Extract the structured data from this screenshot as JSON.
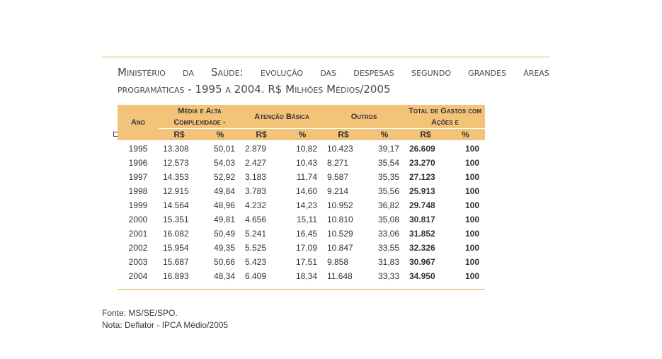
{
  "title": {
    "line1_words": [
      "Ministério",
      "da",
      "Saúde:",
      "evolução",
      "das",
      "despesas",
      "segundo",
      "grandes",
      "áreas"
    ],
    "line2": "programáticas - 1995 a 2004. R$ Milhões Médios/2005"
  },
  "table": {
    "headers": {
      "ano": "Ano",
      "media_alta": "Média e Alta Complexidade -",
      "atencao": "Atenção Básica",
      "outros": "Outros",
      "total": "Total de Gastos com Ações e"
    },
    "subheaders": [
      "R$",
      "%",
      "R$",
      "%",
      "R$",
      "%",
      "R$",
      "%"
    ],
    "rows": [
      [
        "1995",
        "13.308",
        "50,01",
        "2.879",
        "10,82",
        "10.423",
        "39,17",
        "26.609",
        "100"
      ],
      [
        "1996",
        "12.573",
        "54,03",
        "2.427",
        "10,43",
        "8.271",
        "35,54",
        "23.270",
        "100"
      ],
      [
        "1997",
        "14.353",
        "52,92",
        "3.183",
        "11,74",
        "9.587",
        "35,35",
        "27.123",
        "100"
      ],
      [
        "1998",
        "12.915",
        "49,84",
        "3.783",
        "14,60",
        "9.214",
        "35,56",
        "25.913",
        "100"
      ],
      [
        "1999",
        "14.564",
        "48,96",
        "4.232",
        "14,23",
        "10.952",
        "36,82",
        "29.748",
        "100"
      ],
      [
        "2000",
        "15.351",
        "49,81",
        "4.656",
        "15,11",
        "10.810",
        "35,08",
        "30.817",
        "100"
      ],
      [
        "2001",
        "16.082",
        "50,49",
        "5.241",
        "16,45",
        "10.529",
        "33,06",
        "31.852",
        "100"
      ],
      [
        "2002",
        "15.954",
        "49,35",
        "5.525",
        "17,09",
        "10.847",
        "33,55",
        "32.326",
        "100"
      ],
      [
        "2003",
        "15.687",
        "50,66",
        "5.423",
        "17,51",
        "9.858",
        "31,83",
        "30.967",
        "100"
      ],
      [
        "2004",
        "16.893",
        "48,34",
        "6.409",
        "18,34",
        "11.648",
        "33,33",
        "34.950",
        "100"
      ]
    ]
  },
  "notes": {
    "fonte": "Fonte: MS/SE/SPO.",
    "nota": "Nota: Deflator -  IPCA Médio/2005"
  },
  "colors": {
    "header_fill": "#f4c37a",
    "rule": "#e2b44c"
  }
}
